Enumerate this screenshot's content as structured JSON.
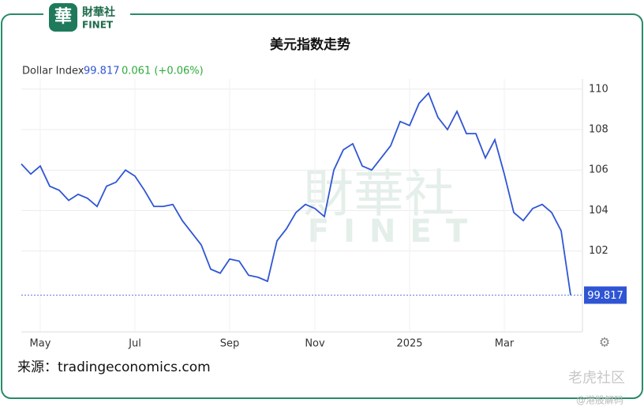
{
  "chart_data": {
    "type": "line",
    "title": "美元指数走势",
    "legend": {
      "name": "Dollar Index",
      "last": "99.817",
      "change": "0.061 (+0.06%)"
    },
    "source": "来源：tradingeconomics.com",
    "logo": {
      "cn": "財華社",
      "en": "FINET"
    },
    "watermark": [
      "老虎社区",
      "@港股解码"
    ],
    "categories": [
      null,
      null,
      "May",
      null,
      null,
      null,
      null,
      null,
      null,
      null,
      null,
      null,
      "Jul",
      null,
      null,
      null,
      null,
      null,
      null,
      null,
      null,
      null,
      "Sep",
      null,
      null,
      null,
      null,
      null,
      null,
      null,
      null,
      "Nov",
      null,
      null,
      null,
      null,
      null,
      null,
      null,
      null,
      null,
      "2025",
      null,
      null,
      null,
      null,
      null,
      null,
      null,
      null,
      null,
      "Mar",
      null,
      null,
      null,
      null,
      null,
      null,
      null
    ],
    "series": [
      {
        "name": "Dollar Index",
        "color": "#2f55d4",
        "values": [
          106.3,
          105.8,
          106.2,
          105.2,
          105.0,
          104.5,
          104.8,
          104.6,
          104.2,
          105.2,
          105.4,
          106.0,
          105.7,
          105.0,
          104.2,
          104.2,
          104.3,
          103.5,
          102.9,
          102.3,
          101.1,
          100.9,
          101.6,
          101.5,
          100.8,
          100.7,
          100.5,
          102.5,
          103.1,
          103.9,
          104.3,
          104.1,
          103.7,
          106.0,
          107.0,
          107.3,
          106.2,
          106.0,
          106.6,
          107.2,
          108.4,
          108.2,
          109.3,
          109.8,
          108.6,
          108.0,
          108.9,
          107.8,
          107.8,
          106.6,
          107.5,
          105.8,
          103.9,
          103.5,
          104.1,
          104.3,
          103.9,
          103.0,
          99.817
        ]
      }
    ],
    "ylim": [
      98,
      110.5
    ],
    "yticks": [
      102,
      104,
      106,
      108,
      110
    ],
    "grid": true
  }
}
